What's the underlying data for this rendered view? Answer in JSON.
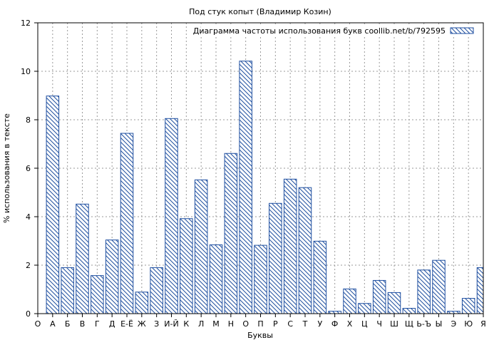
{
  "chart_data": {
    "type": "bar",
    "title": "Под стук копыт (Владимир Козин)",
    "xlabel": "Буквы",
    "ylabel": "% использования в тексте",
    "legend": {
      "label": "Диаграмма частоты использования букв coollib.net/b/792595",
      "position": "top-right"
    },
    "ylim": [
      0,
      12
    ],
    "yticks": [
      0,
      2,
      4,
      6,
      8,
      10,
      12
    ],
    "grid": true,
    "categories": [
      "О",
      "А",
      "Б",
      "В",
      "Г",
      "Д",
      "Е-Ё",
      "Ж",
      "З",
      "И-Й",
      "К",
      "Л",
      "М",
      "Н",
      "О",
      "П",
      "Р",
      "С",
      "Т",
      "У",
      "Ф",
      "Х",
      "Ц",
      "Ч",
      "Ш",
      "Щ",
      "Ь-Ъ",
      "Ы",
      "Э",
      "Ю",
      "Я"
    ],
    "values": [
      0,
      8.98,
      1.9,
      4.52,
      1.57,
      3.04,
      7.44,
      0.89,
      1.9,
      8.05,
      3.92,
      5.52,
      2.84,
      6.61,
      10.42,
      2.82,
      4.55,
      5.55,
      5.2,
      2.99,
      0.1,
      1.02,
      0.42,
      1.37,
      0.87,
      0.22,
      1.8,
      2.2,
      0.1,
      0.63,
      1.9
    ],
    "series": [
      {
        "name": "Диаграмма частоты использования букв coollib.net/b/792595",
        "color": "#1f4fa0"
      }
    ]
  }
}
